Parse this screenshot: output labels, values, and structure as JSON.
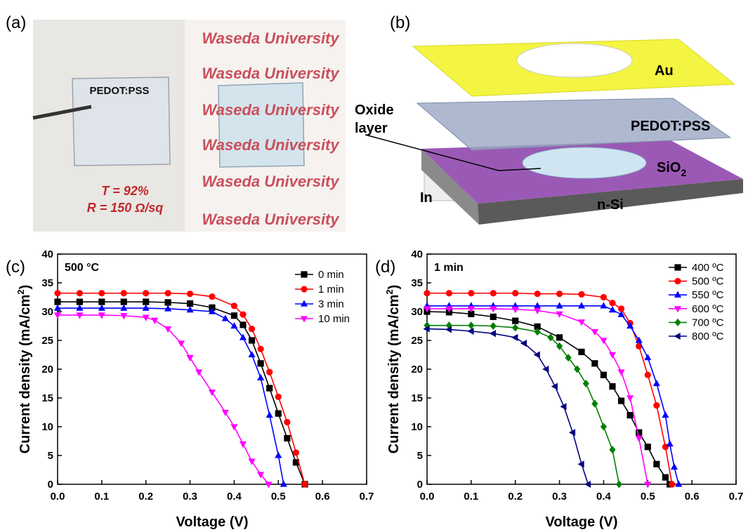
{
  "panel_a": {
    "label": "(a)",
    "sample_label": "PEDOT:PSS",
    "transmittance": "T = 92%",
    "resistance": "R = 150 Ω/sq",
    "background_text": [
      "Waseda University",
      "Waseda University",
      "Waseda University",
      "Waseda University",
      "Waseda University",
      "Waseda University"
    ]
  },
  "panel_b": {
    "label": "(b)",
    "oxide_label": [
      "Oxide",
      "layer"
    ],
    "au": "Au",
    "pedot": "PEDOT:PSS",
    "sio2": {
      "text": "SiO",
      "sub": "2"
    },
    "nsi": "n-Si",
    "indium": "In"
  },
  "chart_data": [
    {
      "type": "line",
      "label": "(c)",
      "annotation": "500 °C",
      "x_label": "Voltage (V)",
      "y_label": {
        "text": "Current density (mA/cm",
        "sup": "2",
        "tail": ")"
      },
      "xlim": [
        0,
        0.7
      ],
      "ylim": [
        0,
        40
      ],
      "xticks": [
        {
          "value": 0,
          "label": "0.0"
        },
        0.1,
        0.2,
        0.3,
        0.4,
        0.5,
        0.6,
        0.7
      ],
      "yticks": [
        0,
        5,
        10,
        15,
        20,
        25,
        30,
        35,
        40
      ],
      "legend": "upper right",
      "series": [
        {
          "name": "0 min",
          "color": "#000000",
          "marker": "square",
          "x": [
            0,
            0.05,
            0.1,
            0.15,
            0.2,
            0.25,
            0.3,
            0.35,
            0.4,
            0.42,
            0.44,
            0.46,
            0.48,
            0.5,
            0.52,
            0.54,
            0.56
          ],
          "values": [
            31.7,
            31.7,
            31.7,
            31.7,
            31.7,
            31.6,
            31.4,
            30.7,
            29.3,
            27.7,
            25,
            21,
            16.7,
            12.3,
            8,
            3.8,
            0
          ]
        },
        {
          "name": "1 min",
          "color": "#ff0000",
          "marker": "circle",
          "x": [
            0,
            0.05,
            0.1,
            0.15,
            0.2,
            0.25,
            0.3,
            0.35,
            0.4,
            0.42,
            0.44,
            0.46,
            0.48,
            0.5,
            0.52,
            0.54,
            0.56
          ],
          "values": [
            33.2,
            33.2,
            33.2,
            33.2,
            33.2,
            33.2,
            33.1,
            32.6,
            31,
            29.5,
            27,
            23.5,
            19.5,
            15.2,
            10.8,
            5.5,
            0
          ]
        },
        {
          "name": "3 min",
          "color": "#0000ff",
          "marker": "triangle-up",
          "x": [
            0,
            0.05,
            0.1,
            0.15,
            0.2,
            0.25,
            0.3,
            0.35,
            0.38,
            0.4,
            0.42,
            0.44,
            0.46,
            0.48,
            0.5,
            0.512
          ],
          "values": [
            30.6,
            30.6,
            30.6,
            30.6,
            30.6,
            30.5,
            30.3,
            30,
            28.8,
            27.5,
            25.5,
            22.5,
            18.5,
            12,
            5,
            0
          ]
        },
        {
          "name": "10 min",
          "color": "#ff00ff",
          "marker": "triangle-down",
          "x": [
            0,
            0.05,
            0.1,
            0.15,
            0.2,
            0.22,
            0.25,
            0.28,
            0.3,
            0.32,
            0.35,
            0.38,
            0.4,
            0.42,
            0.44,
            0.46,
            0.478
          ],
          "values": [
            29.4,
            29.4,
            29.4,
            29.3,
            29,
            28.5,
            27,
            24.5,
            22,
            19.5,
            16,
            12.5,
            10,
            7,
            4,
            1.7,
            0
          ]
        }
      ]
    },
    {
      "type": "line",
      "label": "(d)",
      "annotation": "1 min",
      "x_label": "Voltage (V)",
      "y_label": {
        "text": "Current density (mA/cm",
        "sup": "2",
        "tail": ")"
      },
      "xlim": [
        0,
        0.7
      ],
      "ylim": [
        0,
        40
      ],
      "xticks": [
        {
          "value": 0,
          "label": "0.0"
        },
        0.1,
        0.2,
        0.3,
        0.4,
        0.5,
        0.6,
        0.7
      ],
      "yticks": [
        0,
        5,
        10,
        15,
        20,
        25,
        30,
        35,
        40
      ],
      "legend": "upper right",
      "series": [
        {
          "name": "400 ºC",
          "color": "#000000",
          "marker": "square",
          "x": [
            0,
            0.05,
            0.1,
            0.15,
            0.2,
            0.25,
            0.3,
            0.35,
            0.38,
            0.4,
            0.42,
            0.44,
            0.46,
            0.48,
            0.5,
            0.52,
            0.54,
            0.55
          ],
          "values": [
            30,
            29.9,
            29.6,
            29.1,
            28.4,
            27.4,
            25.5,
            23,
            21,
            19,
            17,
            14.5,
            12,
            9,
            6.5,
            3.5,
            1.2,
            0
          ]
        },
        {
          "name": "500 ºC",
          "color": "#ff0000",
          "marker": "circle",
          "x": [
            0,
            0.05,
            0.1,
            0.15,
            0.2,
            0.25,
            0.3,
            0.35,
            0.4,
            0.42,
            0.44,
            0.46,
            0.48,
            0.5,
            0.52,
            0.54,
            0.555
          ],
          "values": [
            33.2,
            33.2,
            33.2,
            33.2,
            33.2,
            33.1,
            33.1,
            33,
            32.5,
            31.5,
            30.5,
            28,
            24,
            19,
            13.7,
            6.5,
            0
          ]
        },
        {
          "name": "550 ºC",
          "color": "#0000ff",
          "marker": "triangle-up",
          "x": [
            0,
            0.05,
            0.1,
            0.15,
            0.2,
            0.25,
            0.3,
            0.35,
            0.4,
            0.42,
            0.44,
            0.46,
            0.48,
            0.5,
            0.52,
            0.54,
            0.55,
            0.56,
            0.57
          ],
          "values": [
            31,
            31,
            31,
            31,
            31,
            31,
            31,
            31,
            31,
            30.3,
            29.5,
            27.5,
            25,
            22,
            17.5,
            12,
            7,
            3,
            0
          ]
        },
        {
          "name": "600 ºC",
          "color": "#ff00ff",
          "marker": "triangle-down",
          "x": [
            0,
            0.05,
            0.1,
            0.15,
            0.2,
            0.25,
            0.3,
            0.35,
            0.38,
            0.4,
            0.42,
            0.44,
            0.46,
            0.48,
            0.5
          ],
          "values": [
            30.5,
            30.5,
            30.5,
            30.5,
            30.4,
            30.2,
            29.6,
            28.2,
            26.5,
            25,
            22.5,
            19.5,
            15,
            8,
            0
          ]
        },
        {
          "name": "700 ºC",
          "color": "#008000",
          "marker": "diamond",
          "x": [
            0,
            0.05,
            0.1,
            0.15,
            0.2,
            0.25,
            0.28,
            0.3,
            0.32,
            0.34,
            0.36,
            0.38,
            0.4,
            0.42,
            0.435
          ],
          "values": [
            27.6,
            27.6,
            27.6,
            27.5,
            27.2,
            26.5,
            25.5,
            24,
            22,
            20,
            17.5,
            14,
            10,
            6,
            0
          ]
        },
        {
          "name": "800 ºC",
          "color": "#000080",
          "marker": "triangle-left",
          "x": [
            0,
            0.05,
            0.1,
            0.15,
            0.2,
            0.22,
            0.25,
            0.27,
            0.29,
            0.31,
            0.33,
            0.35,
            0.365
          ],
          "values": [
            27,
            26.9,
            26.6,
            26.2,
            25.5,
            24.5,
            22.5,
            20,
            17,
            13.5,
            9,
            3.5,
            0
          ]
        }
      ]
    }
  ]
}
